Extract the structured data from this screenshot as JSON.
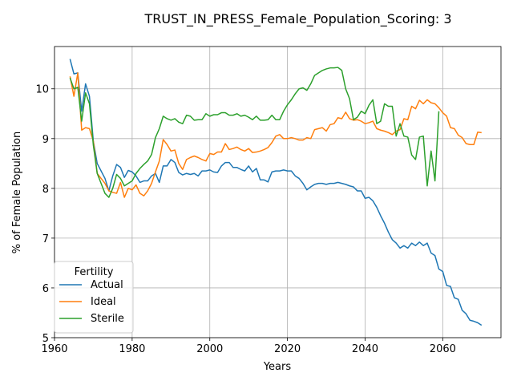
{
  "chart_data": {
    "type": "line",
    "title": "TRUST_IN_PRESS_Female_Population_Scoring: 3",
    "xlabel": "Years",
    "ylabel": "% of Female Population",
    "xlim": [
      1960,
      2075
    ],
    "ylim": [
      5,
      10.85
    ],
    "xticks": [
      1960,
      1980,
      2000,
      2020,
      2040,
      2060
    ],
    "yticks": [
      5,
      6,
      7,
      8,
      9,
      10
    ],
    "grid": true,
    "legend": {
      "title": "Fertility",
      "placement": "lower-left"
    },
    "series": [
      {
        "name": "Actual",
        "color": "#1f77b4",
        "points": [
          [
            1964,
            10.6
          ],
          [
            1965,
            10.3
          ],
          [
            1966,
            10.32
          ],
          [
            1967,
            9.55
          ],
          [
            1968,
            10.1
          ],
          [
            1969,
            9.85
          ],
          [
            1970,
            8.95
          ],
          [
            1971,
            8.5
          ],
          [
            1972,
            8.35
          ],
          [
            1973,
            8.2
          ],
          [
            1974,
            7.95
          ],
          [
            1975,
            8.25
          ],
          [
            1976,
            8.48
          ],
          [
            1977,
            8.42
          ],
          [
            1978,
            8.22
          ],
          [
            1979,
            8.36
          ],
          [
            1980,
            8.33
          ],
          [
            1981,
            8.25
          ],
          [
            1982,
            8.12
          ],
          [
            1983,
            8.15
          ],
          [
            1984,
            8.15
          ],
          [
            1985,
            8.25
          ],
          [
            1986,
            8.3
          ],
          [
            1987,
            8.12
          ],
          [
            1988,
            8.45
          ],
          [
            1989,
            8.45
          ],
          [
            1990,
            8.58
          ],
          [
            1991,
            8.52
          ],
          [
            1992,
            8.32
          ],
          [
            1993,
            8.27
          ],
          [
            1994,
            8.3
          ],
          [
            1995,
            8.28
          ],
          [
            1996,
            8.3
          ],
          [
            1997,
            8.25
          ],
          [
            1998,
            8.35
          ],
          [
            1999,
            8.35
          ],
          [
            2000,
            8.37
          ],
          [
            2001,
            8.33
          ],
          [
            2002,
            8.32
          ],
          [
            2003,
            8.45
          ],
          [
            2004,
            8.52
          ],
          [
            2005,
            8.52
          ],
          [
            2006,
            8.42
          ],
          [
            2007,
            8.42
          ],
          [
            2008,
            8.38
          ],
          [
            2009,
            8.35
          ],
          [
            2010,
            8.45
          ],
          [
            2011,
            8.33
          ],
          [
            2012,
            8.4
          ],
          [
            2013,
            8.17
          ],
          [
            2014,
            8.17
          ],
          [
            2015,
            8.13
          ],
          [
            2016,
            8.33
          ],
          [
            2017,
            8.35
          ],
          [
            2018,
            8.35
          ],
          [
            2019,
            8.37
          ],
          [
            2020,
            8.35
          ],
          [
            2021,
            8.35
          ],
          [
            2022,
            8.25
          ],
          [
            2023,
            8.2
          ],
          [
            2024,
            8.1
          ],
          [
            2025,
            7.97
          ],
          [
            2026,
            8.03
          ],
          [
            2027,
            8.08
          ],
          [
            2028,
            8.1
          ],
          [
            2029,
            8.1
          ],
          [
            2030,
            8.08
          ],
          [
            2031,
            8.1
          ],
          [
            2032,
            8.1
          ],
          [
            2033,
            8.12
          ],
          [
            2034,
            8.1
          ],
          [
            2035,
            8.08
          ],
          [
            2036,
            8.05
          ],
          [
            2037,
            8.03
          ],
          [
            2038,
            7.95
          ],
          [
            2039,
            7.95
          ],
          [
            2040,
            7.8
          ],
          [
            2041,
            7.82
          ],
          [
            2042,
            7.75
          ],
          [
            2043,
            7.62
          ],
          [
            2044,
            7.45
          ],
          [
            2045,
            7.3
          ],
          [
            2046,
            7.12
          ],
          [
            2047,
            6.97
          ],
          [
            2048,
            6.9
          ],
          [
            2049,
            6.8
          ],
          [
            2050,
            6.85
          ],
          [
            2051,
            6.8
          ],
          [
            2052,
            6.9
          ],
          [
            2053,
            6.85
          ],
          [
            2054,
            6.92
          ],
          [
            2055,
            6.85
          ],
          [
            2056,
            6.9
          ],
          [
            2057,
            6.7
          ],
          [
            2058,
            6.65
          ],
          [
            2059,
            6.38
          ],
          [
            2060,
            6.33
          ],
          [
            2061,
            6.05
          ],
          [
            2062,
            6.03
          ],
          [
            2063,
            5.8
          ],
          [
            2064,
            5.77
          ],
          [
            2065,
            5.55
          ],
          [
            2066,
            5.48
          ],
          [
            2067,
            5.35
          ],
          [
            2068,
            5.33
          ],
          [
            2069,
            5.3
          ],
          [
            2070,
            5.25
          ]
        ]
      },
      {
        "name": "Ideal",
        "color": "#ff7f0e",
        "points": [
          [
            1964,
            10.25
          ],
          [
            1965,
            9.85
          ],
          [
            1966,
            10.32
          ],
          [
            1967,
            9.17
          ],
          [
            1968,
            9.22
          ],
          [
            1969,
            9.2
          ],
          [
            1970,
            8.95
          ],
          [
            1971,
            8.3
          ],
          [
            1972,
            8.2
          ],
          [
            1973,
            8.1
          ],
          [
            1974,
            7.95
          ],
          [
            1975,
            7.92
          ],
          [
            1976,
            7.9
          ],
          [
            1977,
            8.12
          ],
          [
            1978,
            7.82
          ],
          [
            1979,
            8.0
          ],
          [
            1980,
            7.97
          ],
          [
            1981,
            8.07
          ],
          [
            1982,
            7.9
          ],
          [
            1983,
            7.85
          ],
          [
            1984,
            7.95
          ],
          [
            1985,
            8.1
          ],
          [
            1986,
            8.33
          ],
          [
            1987,
            8.55
          ],
          [
            1988,
            8.98
          ],
          [
            1989,
            8.88
          ],
          [
            1990,
            8.75
          ],
          [
            1991,
            8.77
          ],
          [
            1992,
            8.5
          ],
          [
            1993,
            8.38
          ],
          [
            1994,
            8.58
          ],
          [
            1995,
            8.62
          ],
          [
            1996,
            8.65
          ],
          [
            1997,
            8.62
          ],
          [
            1998,
            8.58
          ],
          [
            1999,
            8.55
          ],
          [
            2000,
            8.7
          ],
          [
            2001,
            8.68
          ],
          [
            2002,
            8.73
          ],
          [
            2003,
            8.73
          ],
          [
            2004,
            8.9
          ],
          [
            2005,
            8.78
          ],
          [
            2006,
            8.8
          ],
          [
            2007,
            8.83
          ],
          [
            2008,
            8.78
          ],
          [
            2009,
            8.75
          ],
          [
            2010,
            8.8
          ],
          [
            2011,
            8.72
          ],
          [
            2012,
            8.73
          ],
          [
            2013,
            8.75
          ],
          [
            2014,
            8.78
          ],
          [
            2015,
            8.82
          ],
          [
            2016,
            8.92
          ],
          [
            2017,
            9.05
          ],
          [
            2018,
            9.08
          ],
          [
            2019,
            9.0
          ],
          [
            2020,
            9.0
          ],
          [
            2021,
            9.02
          ],
          [
            2022,
            9.0
          ],
          [
            2023,
            8.97
          ],
          [
            2024,
            8.97
          ],
          [
            2025,
            9.02
          ],
          [
            2026,
            9.0
          ],
          [
            2027,
            9.18
          ],
          [
            2028,
            9.2
          ],
          [
            2029,
            9.22
          ],
          [
            2030,
            9.15
          ],
          [
            2031,
            9.28
          ],
          [
            2032,
            9.3
          ],
          [
            2033,
            9.42
          ],
          [
            2034,
            9.4
          ],
          [
            2035,
            9.53
          ],
          [
            2036,
            9.4
          ],
          [
            2037,
            9.37
          ],
          [
            2038,
            9.38
          ],
          [
            2039,
            9.35
          ],
          [
            2040,
            9.3
          ],
          [
            2041,
            9.32
          ],
          [
            2042,
            9.35
          ],
          [
            2043,
            9.2
          ],
          [
            2044,
            9.17
          ],
          [
            2045,
            9.15
          ],
          [
            2046,
            9.12
          ],
          [
            2047,
            9.08
          ],
          [
            2048,
            9.15
          ],
          [
            2049,
            9.18
          ],
          [
            2050,
            9.4
          ],
          [
            2051,
            9.38
          ],
          [
            2052,
            9.65
          ],
          [
            2053,
            9.6
          ],
          [
            2054,
            9.77
          ],
          [
            2055,
            9.7
          ],
          [
            2056,
            9.78
          ],
          [
            2057,
            9.72
          ],
          [
            2058,
            9.7
          ],
          [
            2059,
            9.62
          ],
          [
            2060,
            9.52
          ],
          [
            2061,
            9.45
          ],
          [
            2062,
            9.22
          ],
          [
            2063,
            9.2
          ],
          [
            2064,
            9.07
          ],
          [
            2065,
            9.02
          ],
          [
            2066,
            8.9
          ],
          [
            2067,
            8.88
          ],
          [
            2068,
            8.88
          ],
          [
            2069,
            9.13
          ],
          [
            2070,
            9.12
          ]
        ]
      },
      {
        "name": "Sterile",
        "color": "#2ca02c",
        "points": [
          [
            1964,
            10.22
          ],
          [
            1965,
            10.0
          ],
          [
            1966,
            10.03
          ],
          [
            1967,
            9.35
          ],
          [
            1968,
            9.92
          ],
          [
            1969,
            9.7
          ],
          [
            1970,
            8.87
          ],
          [
            1971,
            8.3
          ],
          [
            1972,
            8.1
          ],
          [
            1973,
            7.9
          ],
          [
            1974,
            7.82
          ],
          [
            1975,
            8.0
          ],
          [
            1976,
            8.28
          ],
          [
            1977,
            8.2
          ],
          [
            1978,
            8.05
          ],
          [
            1979,
            8.1
          ],
          [
            1980,
            8.15
          ],
          [
            1981,
            8.3
          ],
          [
            1982,
            8.4
          ],
          [
            1983,
            8.48
          ],
          [
            1984,
            8.55
          ],
          [
            1985,
            8.68
          ],
          [
            1986,
            9.02
          ],
          [
            1987,
            9.2
          ],
          [
            1988,
            9.45
          ],
          [
            1989,
            9.4
          ],
          [
            1990,
            9.37
          ],
          [
            1991,
            9.4
          ],
          [
            1992,
            9.33
          ],
          [
            1993,
            9.3
          ],
          [
            1994,
            9.47
          ],
          [
            1995,
            9.45
          ],
          [
            1996,
            9.37
          ],
          [
            1997,
            9.38
          ],
          [
            1998,
            9.38
          ],
          [
            1999,
            9.5
          ],
          [
            2000,
            9.45
          ],
          [
            2001,
            9.48
          ],
          [
            2002,
            9.48
          ],
          [
            2003,
            9.52
          ],
          [
            2004,
            9.52
          ],
          [
            2005,
            9.47
          ],
          [
            2006,
            9.47
          ],
          [
            2007,
            9.5
          ],
          [
            2008,
            9.45
          ],
          [
            2009,
            9.47
          ],
          [
            2010,
            9.43
          ],
          [
            2011,
            9.38
          ],
          [
            2012,
            9.45
          ],
          [
            2013,
            9.37
          ],
          [
            2014,
            9.37
          ],
          [
            2015,
            9.38
          ],
          [
            2016,
            9.47
          ],
          [
            2017,
            9.38
          ],
          [
            2018,
            9.38
          ],
          [
            2019,
            9.55
          ],
          [
            2020,
            9.68
          ],
          [
            2021,
            9.78
          ],
          [
            2022,
            9.9
          ],
          [
            2023,
            10.0
          ],
          [
            2024,
            10.02
          ],
          [
            2025,
            9.97
          ],
          [
            2026,
            10.1
          ],
          [
            2027,
            10.27
          ],
          [
            2028,
            10.32
          ],
          [
            2029,
            10.37
          ],
          [
            2030,
            10.4
          ],
          [
            2031,
            10.42
          ],
          [
            2032,
            10.42
          ],
          [
            2033,
            10.43
          ],
          [
            2034,
            10.37
          ],
          [
            2035,
            10.0
          ],
          [
            2036,
            9.8
          ],
          [
            2037,
            9.38
          ],
          [
            2038,
            9.43
          ],
          [
            2039,
            9.55
          ],
          [
            2040,
            9.5
          ],
          [
            2041,
            9.67
          ],
          [
            2042,
            9.78
          ],
          [
            2043,
            9.3
          ],
          [
            2044,
            9.35
          ],
          [
            2045,
            9.7
          ],
          [
            2046,
            9.65
          ],
          [
            2047,
            9.65
          ],
          [
            2048,
            9.05
          ],
          [
            2049,
            9.3
          ],
          [
            2050,
            9.05
          ],
          [
            2051,
            9.03
          ],
          [
            2052,
            8.67
          ],
          [
            2053,
            8.58
          ],
          [
            2054,
            9.03
          ],
          [
            2055,
            9.05
          ],
          [
            2056,
            8.05
          ],
          [
            2057,
            8.75
          ],
          [
            2058,
            8.15
          ],
          [
            2059,
            9.55
          ]
        ]
      }
    ]
  }
}
